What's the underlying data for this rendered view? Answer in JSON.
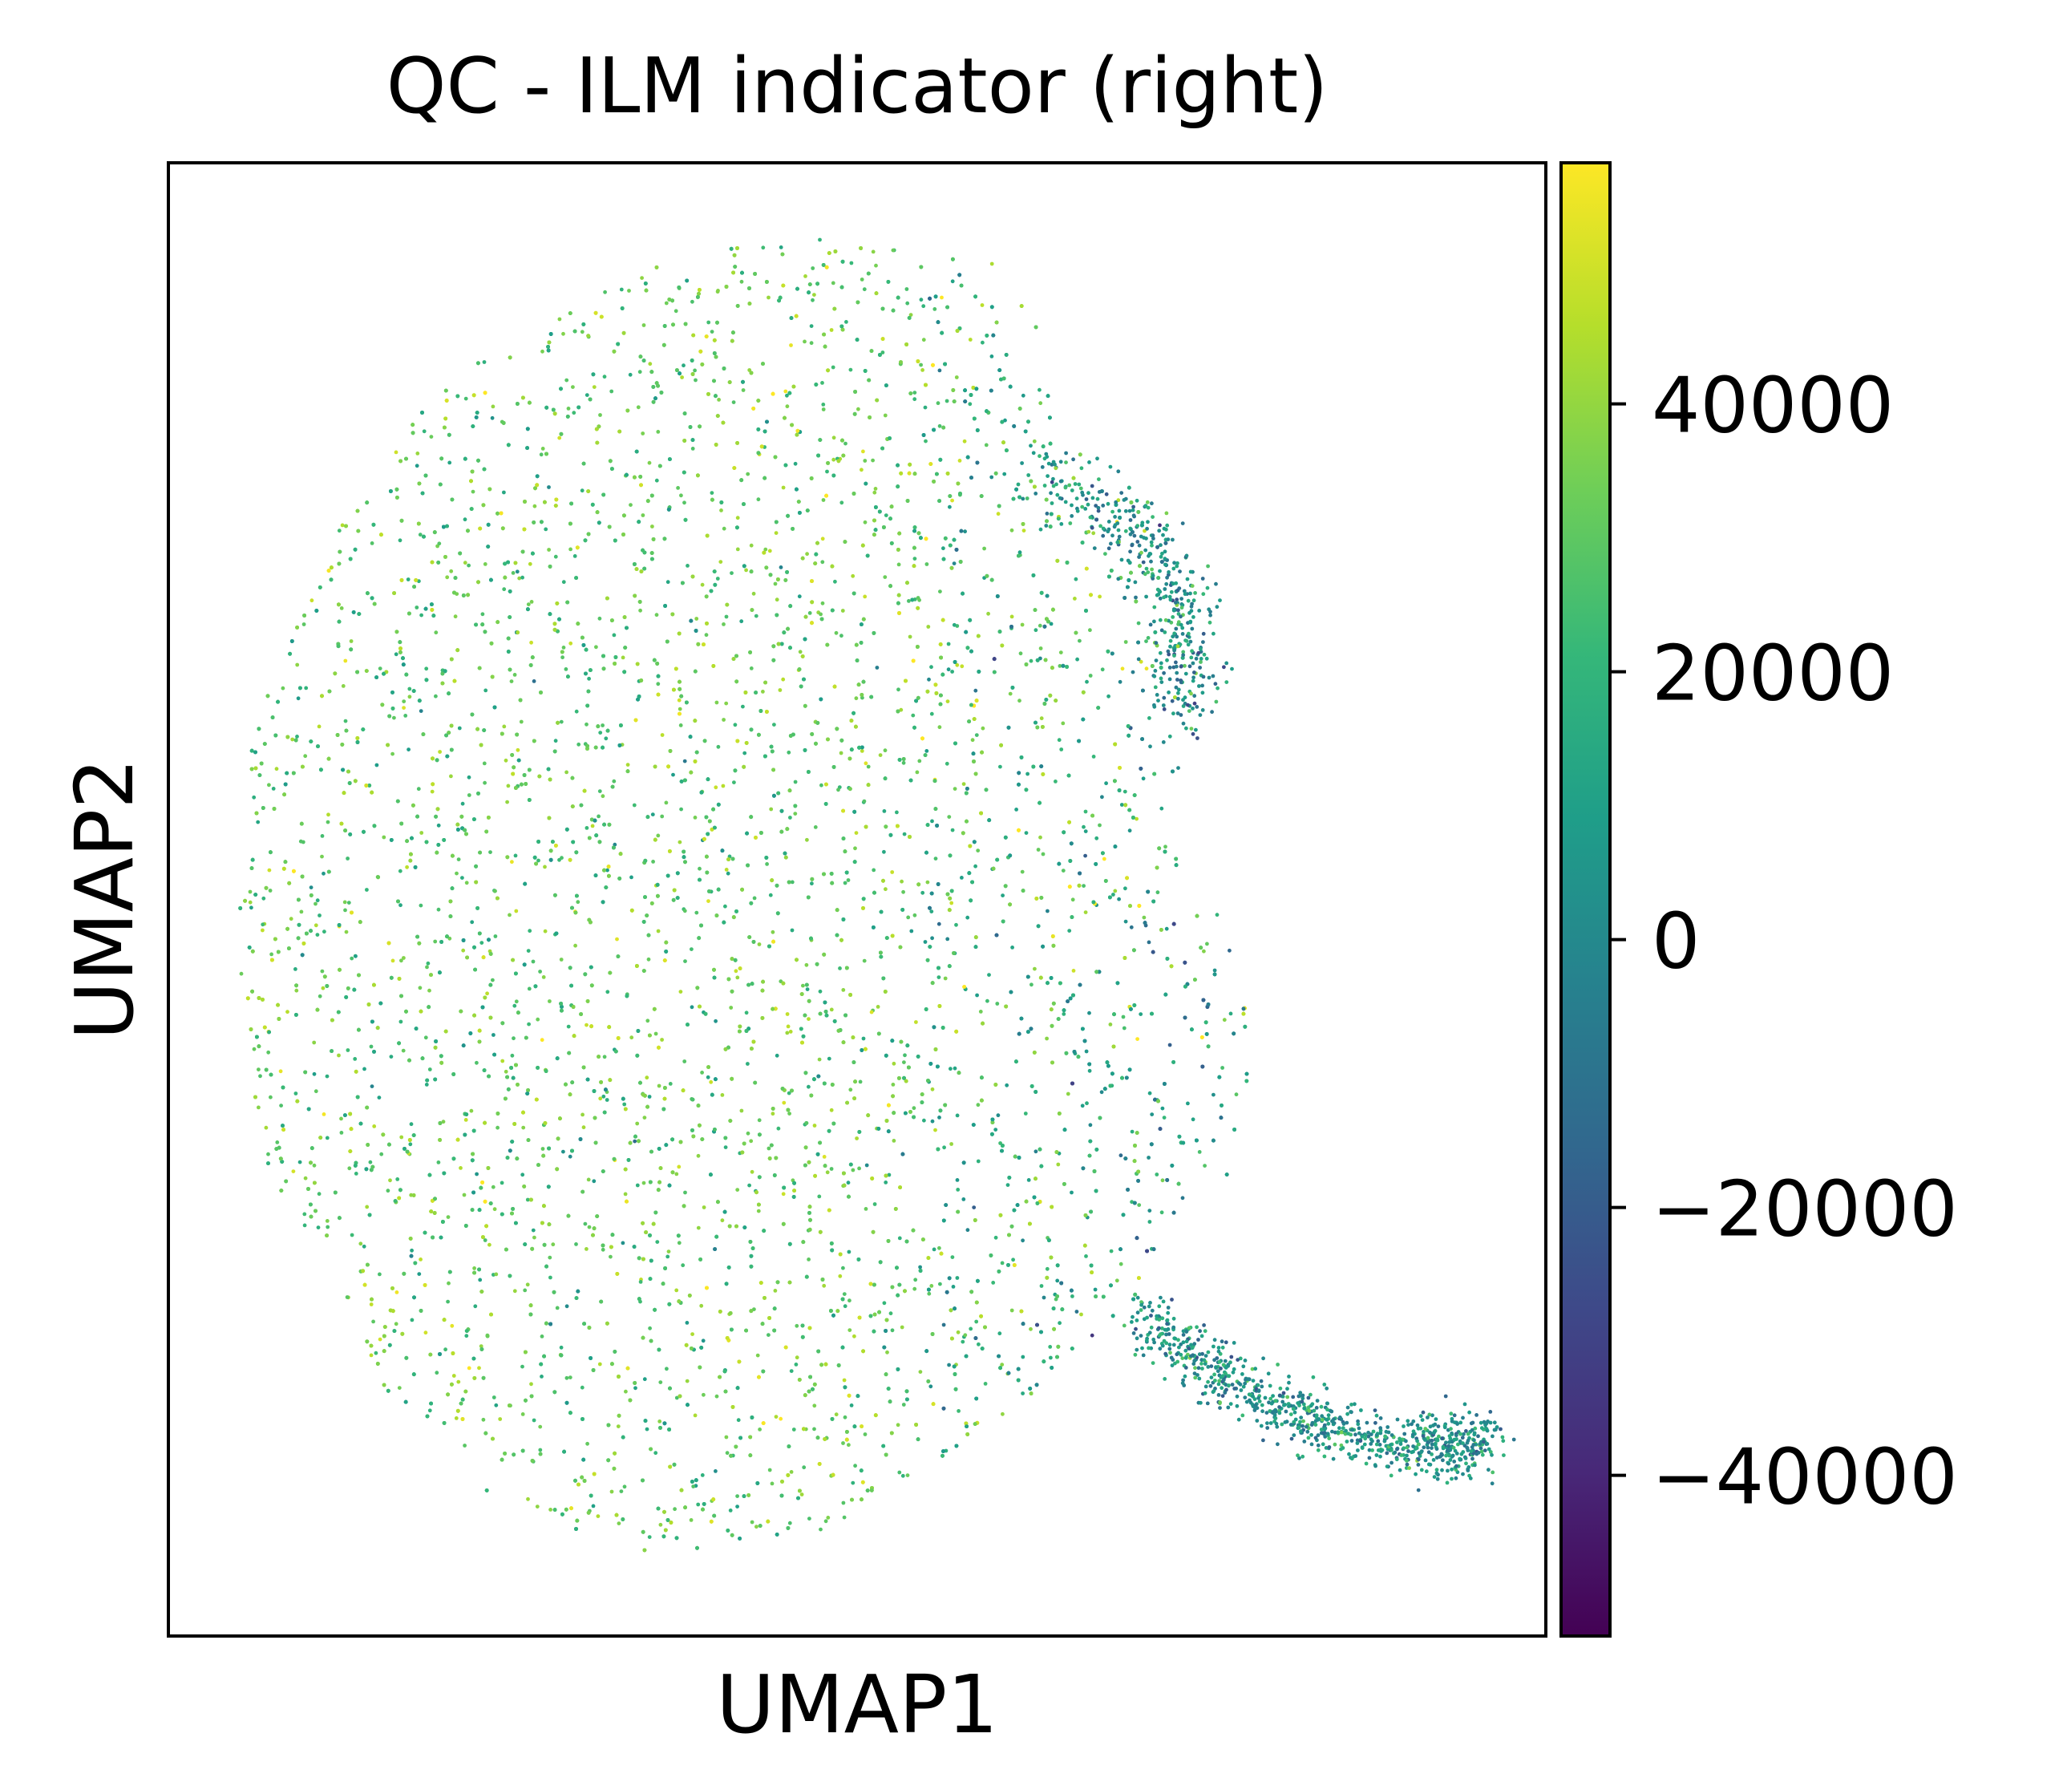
{
  "chart_data": {
    "type": "scatter",
    "title": "QC - ILM indicator (right)",
    "xlabel": "UMAP1",
    "ylabel": "UMAP2",
    "grid": false,
    "legend": "colorbar-right",
    "x_ticks_shown": false,
    "y_ticks_shown": false,
    "xlim": [
      -7.5,
      12.5
    ],
    "ylim": [
      -7.0,
      11.0
    ],
    "colormap": "viridis",
    "colormap_stops": [
      "#440154",
      "#482878",
      "#3e4989",
      "#31688e",
      "#26828e",
      "#1f9e89",
      "#35b779",
      "#6ece58",
      "#b5de2b",
      "#fde725"
    ],
    "colorbar": {
      "min": -52000,
      "max": 58000,
      "ticks": [
        -40000,
        -20000,
        0,
        20000,
        40000
      ],
      "tick_labels": [
        "−40000",
        "−20000",
        "0",
        "20000",
        "40000"
      ]
    },
    "series": [
      {
        "description": "cells",
        "points_sample": [
          {
            "x": -4.5,
            "y": 3.5,
            "value": 35000
          },
          {
            "x": -3.0,
            "y": 6.0,
            "value": 30000
          },
          {
            "x": -1.0,
            "y": 8.5,
            "value": 28000
          },
          {
            "x": 0.5,
            "y": 4.0,
            "value": 32000
          },
          {
            "x": 1.5,
            "y": 0.5,
            "value": 25000
          },
          {
            "x": 3.0,
            "y": 2.5,
            "value": 15000
          },
          {
            "x": 5.0,
            "y": 3.0,
            "value": 5000
          },
          {
            "x": 4.5,
            "y": -1.5,
            "value": 8000
          },
          {
            "x": -2.0,
            "y": -2.5,
            "value": 30000
          },
          {
            "x": 0.0,
            "y": -5.0,
            "value": 28000
          },
          {
            "x": 6.0,
            "y": -4.5,
            "value": 10000
          },
          {
            "x": 9.0,
            "y": -4.8,
            "value": 3000
          },
          {
            "x": 11.0,
            "y": -5.5,
            "value": 2000
          }
        ]
      }
    ]
  }
}
